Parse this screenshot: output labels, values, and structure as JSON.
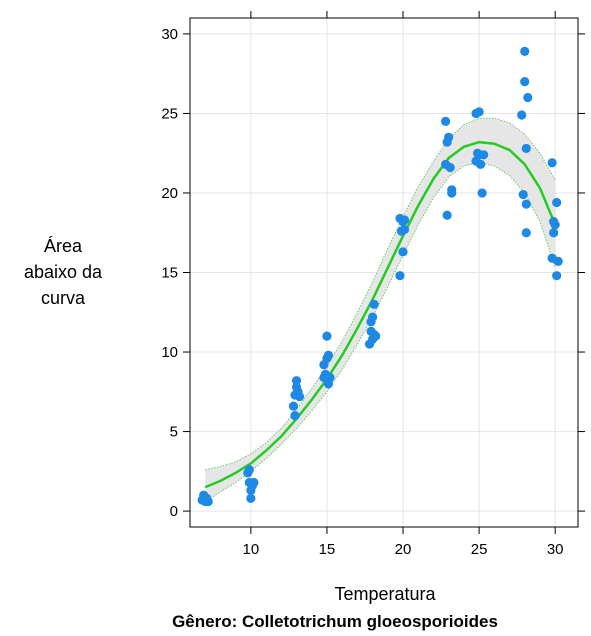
{
  "chart_data": {
    "type": "scatter",
    "title": "",
    "caption": "Gênero: Colletotrichum gloeosporioides",
    "xlabel": "Temperatura",
    "ylabel_lines": [
      "Área",
      "abaixo da",
      "curva"
    ],
    "xlim": [
      6,
      31.5
    ],
    "ylim": [
      -1,
      31
    ],
    "xticks": [
      10,
      15,
      20,
      25,
      30
    ],
    "yticks": [
      0,
      5,
      10,
      15,
      20,
      25,
      30
    ],
    "grid": true,
    "colors": {
      "points": "#1E88E5",
      "fit": "#22CC22",
      "band": "#E6E6E6",
      "band_edge": "#66CC66",
      "grid": "#E4E4E4"
    },
    "points": [
      [
        6.8,
        0.7
      ],
      [
        6.9,
        1.0
      ],
      [
        7.0,
        0.6
      ],
      [
        7.1,
        0.8
      ],
      [
        7.2,
        0.6
      ],
      [
        9.8,
        2.4
      ],
      [
        9.9,
        2.6
      ],
      [
        9.9,
        1.8
      ],
      [
        10.0,
        1.3
      ],
      [
        10.0,
        0.8
      ],
      [
        10.1,
        1.6
      ],
      [
        10.2,
        1.8
      ],
      [
        12.8,
        6.6
      ],
      [
        12.9,
        7.3
      ],
      [
        12.9,
        6.0
      ],
      [
        13.0,
        7.8
      ],
      [
        13.0,
        8.2
      ],
      [
        13.1,
        7.5
      ],
      [
        13.2,
        7.2
      ],
      [
        14.8,
        8.4
      ],
      [
        14.8,
        9.2
      ],
      [
        14.9,
        8.6
      ],
      [
        15.0,
        9.6
      ],
      [
        15.0,
        11.0
      ],
      [
        15.1,
        8.0
      ],
      [
        15.1,
        9.8
      ],
      [
        15.2,
        8.4
      ],
      [
        17.8,
        10.5
      ],
      [
        17.9,
        11.3
      ],
      [
        17.9,
        11.9
      ],
      [
        18.0,
        12.2
      ],
      [
        18.0,
        10.8
      ],
      [
        18.1,
        13.0
      ],
      [
        18.1,
        11.1
      ],
      [
        18.2,
        11.0
      ],
      [
        19.8,
        18.4
      ],
      [
        19.8,
        14.8
      ],
      [
        19.9,
        17.6
      ],
      [
        20.0,
        18.2
      ],
      [
        20.0,
        16.3
      ],
      [
        20.1,
        18.3
      ],
      [
        20.1,
        17.7
      ],
      [
        22.8,
        24.5
      ],
      [
        22.8,
        21.8
      ],
      [
        22.9,
        23.2
      ],
      [
        22.9,
        18.6
      ],
      [
        23.0,
        23.5
      ],
      [
        23.1,
        21.6
      ],
      [
        23.2,
        20.2
      ],
      [
        23.2,
        20.0
      ],
      [
        24.8,
        22.0
      ],
      [
        24.8,
        25.0
      ],
      [
        24.9,
        22.5
      ],
      [
        25.0,
        25.1
      ],
      [
        25.0,
        22.4
      ],
      [
        25.1,
        21.8
      ],
      [
        25.2,
        20.0
      ],
      [
        25.3,
        22.4
      ],
      [
        27.8,
        24.9
      ],
      [
        27.9,
        19.9
      ],
      [
        28.0,
        28.9
      ],
      [
        28.0,
        27.0
      ],
      [
        28.1,
        22.8
      ],
      [
        28.1,
        19.3
      ],
      [
        28.1,
        17.5
      ],
      [
        28.2,
        26.0
      ],
      [
        29.8,
        21.9
      ],
      [
        29.8,
        15.9
      ],
      [
        29.9,
        18.2
      ],
      [
        29.9,
        17.5
      ],
      [
        30.0,
        18.0
      ],
      [
        30.1,
        14.8
      ],
      [
        30.1,
        19.4
      ],
      [
        30.2,
        15.7
      ]
    ],
    "fit": {
      "x": [
        7.0,
        8.0,
        9.0,
        10.0,
        11.0,
        12.0,
        13.0,
        14.0,
        15.0,
        16.0,
        17.0,
        18.0,
        19.0,
        20.0,
        21.0,
        22.0,
        23.0,
        24.0,
        25.0,
        26.0,
        27.0,
        28.0,
        29.0,
        30.0
      ],
      "y": [
        1.5,
        1.9,
        2.4,
        3.0,
        3.8,
        4.7,
        5.8,
        7.0,
        8.3,
        9.8,
        11.5,
        13.3,
        15.3,
        17.3,
        19.2,
        20.9,
        22.2,
        22.9,
        23.2,
        23.1,
        22.7,
        21.8,
        20.3,
        18.0
      ],
      "lower": [
        0.6,
        1.2,
        1.8,
        2.5,
        3.3,
        4.2,
        5.2,
        6.3,
        7.5,
        8.9,
        10.5,
        12.2,
        14.1,
        16.1,
        18.0,
        19.7,
        21.0,
        21.7,
        21.9,
        21.7,
        21.1,
        20.0,
        18.2,
        15.3
      ],
      "upper": [
        2.6,
        2.8,
        3.1,
        3.6,
        4.3,
        5.2,
        6.4,
        7.7,
        9.1,
        10.7,
        12.5,
        14.4,
        16.5,
        18.5,
        20.4,
        22.0,
        23.4,
        24.3,
        24.7,
        24.7,
        24.4,
        23.7,
        22.5,
        20.8
      ]
    }
  }
}
